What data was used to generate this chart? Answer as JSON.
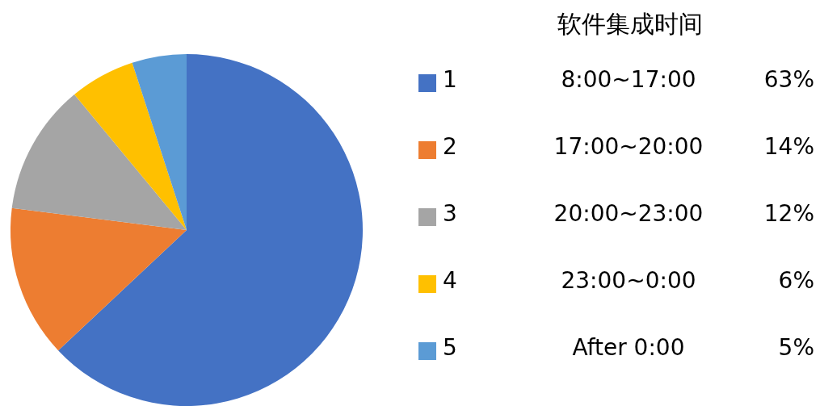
{
  "chart_data": {
    "type": "pie",
    "title": "软件集成时间",
    "categories": [
      "1",
      "2",
      "3",
      "4",
      "5"
    ],
    "values": [
      63,
      14,
      12,
      6,
      5
    ],
    "colors": [
      "#4472c4",
      "#ed7d31",
      "#a5a5a5",
      "#ffc000",
      "#5b9bd5"
    ],
    "value_labels": [
      "63%",
      "14%",
      "12%",
      "6%",
      "5%"
    ],
    "annotations": [
      "8:00~17:00",
      "17:00~20:00",
      "20:00~23:00",
      "23:00~0:00",
      "After 0:00"
    ],
    "legend": "right"
  }
}
